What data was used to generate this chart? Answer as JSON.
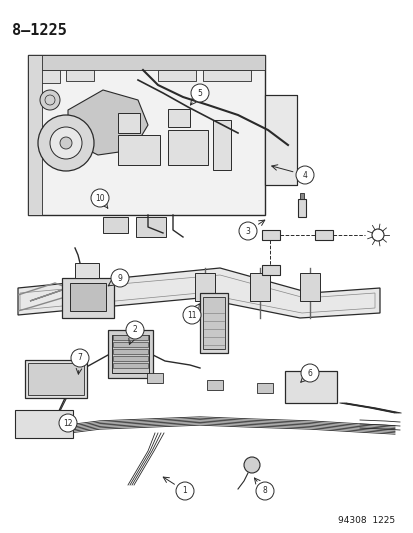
{
  "title": "8–1225",
  "footer": "94308  1225",
  "bg_color": "#ffffff",
  "text_color": "#1a1a1a",
  "title_fontsize": 11,
  "footer_fontsize": 6.5,
  "fig_width": 4.14,
  "fig_height": 5.33,
  "dpi": 100,
  "line_color": "#2a2a2a",
  "gray_fill": "#d8d8d8",
  "light_fill": "#eeeeee",
  "mid_fill": "#c8c8c8"
}
